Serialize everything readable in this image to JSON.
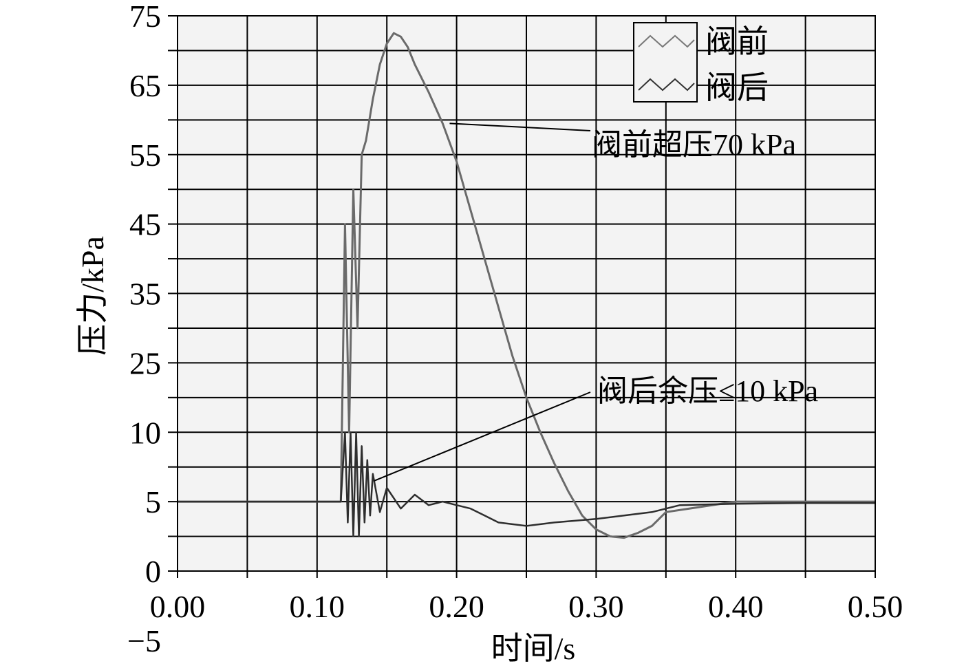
{
  "chart_data": {
    "type": "line",
    "title": "",
    "xlabel": "时间/s",
    "ylabel": "压力/kPa",
    "xlim": [
      0.0,
      0.5
    ],
    "ylim": [
      -5,
      75
    ],
    "x_ticks": [
      "0.00",
      "0.10",
      "0.20",
      "0.30",
      "0.40",
      "0.50"
    ],
    "y_ticks": [
      "75",
      "65",
      "55",
      "45",
      "35",
      "25",
      "10",
      "5",
      "0",
      "−5"
    ],
    "grid": true,
    "legend_position": "top-right",
    "series": [
      {
        "name": "阀前",
        "x": [
          0.0,
          0.117,
          0.12,
          0.123,
          0.126,
          0.129,
          0.132,
          0.135,
          0.14,
          0.145,
          0.15,
          0.155,
          0.16,
          0.165,
          0.17,
          0.18,
          0.19,
          0.2,
          0.21,
          0.22,
          0.23,
          0.24,
          0.25,
          0.26,
          0.27,
          0.28,
          0.29,
          0.3,
          0.31,
          0.32,
          0.33,
          0.34,
          0.35,
          0.4,
          0.45,
          0.5
        ],
        "y": [
          0.0,
          0.0,
          40.0,
          10.0,
          45.0,
          25.0,
          50.0,
          52.0,
          58.0,
          63.0,
          66.0,
          67.5,
          67.0,
          65.5,
          63.0,
          59.0,
          54.5,
          49.0,
          42.0,
          35.0,
          28.0,
          21.0,
          15.0,
          10.0,
          5.5,
          1.5,
          -2.0,
          -4.0,
          -5.0,
          -5.2,
          -4.5,
          -3.5,
          -1.5,
          0.0,
          0.0,
          0.0
        ]
      },
      {
        "name": "阀后",
        "x": [
          0.0,
          0.117,
          0.12,
          0.122,
          0.124,
          0.126,
          0.128,
          0.13,
          0.132,
          0.134,
          0.136,
          0.138,
          0.14,
          0.145,
          0.15,
          0.16,
          0.17,
          0.18,
          0.19,
          0.2,
          0.21,
          0.22,
          0.23,
          0.25,
          0.27,
          0.3,
          0.32,
          0.34,
          0.36,
          0.4,
          0.45,
          0.5
        ],
        "y": [
          0.0,
          0.0,
          10.0,
          -3.0,
          10.0,
          -5.0,
          10.0,
          -5.0,
          8.0,
          -3.0,
          6.0,
          -2.0,
          4.0,
          -1.5,
          2.0,
          -1.0,
          1.0,
          -0.5,
          0.0,
          -0.5,
          -1.0,
          -2.0,
          -3.0,
          -3.5,
          -3.0,
          -2.5,
          -2.0,
          -1.5,
          -0.5,
          -0.3,
          -0.2,
          -0.2
        ]
      }
    ],
    "annotations": [
      {
        "text": "阀前超压70 kPa",
        "points_to": {
          "x": 0.195,
          "y": 54.5
        }
      },
      {
        "text": "阀后余压≤10 kPa",
        "points_to": {
          "x": 0.141,
          "y": 3.0
        }
      }
    ]
  }
}
